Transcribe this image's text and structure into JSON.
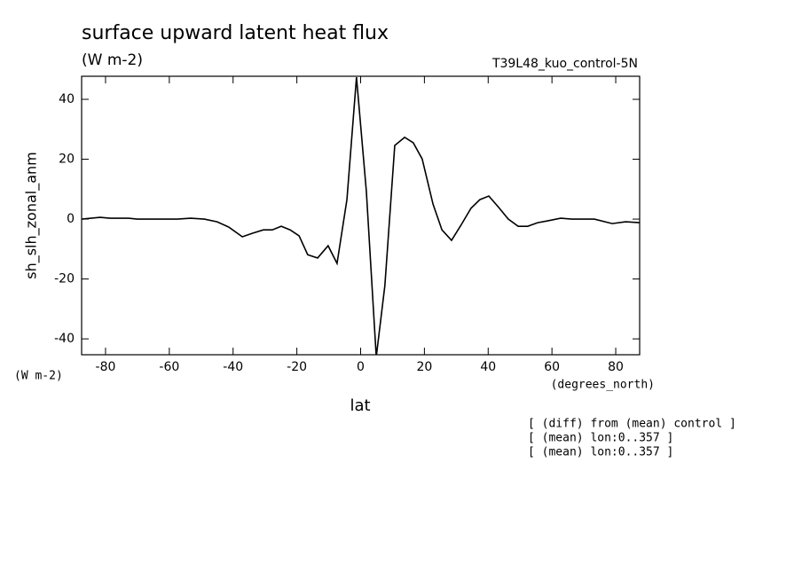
{
  "chart_data": {
    "type": "line",
    "title": "surface upward latent heat flux",
    "subtitle": "(W m-2)",
    "run_label": "T39L48_kuo_control-5N",
    "y_label": "sh_slh_zonal_anm",
    "y_units": "(W m-2)",
    "x_units": "(degrees_north)",
    "x_label": "lat",
    "notes": [
      "[ (diff) from (mean) control ]",
      "[ (mean) lon:0..357 ]",
      "[ (mean) lon:0..357 ]"
    ],
    "x": [
      -87.5,
      -81.7,
      -78.6,
      -72.8,
      -70.0,
      -57.5,
      -53.3,
      -49.0,
      -45.0,
      -41.3,
      -37.1,
      -33.8,
      -30.5,
      -27.7,
      -24.9,
      -22.1,
      -19.3,
      -16.6,
      -13.5,
      -10.2,
      -7.4,
      -4.3,
      -1.3,
      1.8,
      4.9,
      7.6,
      10.7,
      13.8,
      16.5,
      19.3,
      22.7,
      25.5,
      28.5,
      31.6,
      34.6,
      37.4,
      40.2,
      43.3,
      46.3,
      49.4,
      52.4,
      55.5,
      58.6,
      62.7,
      66.3,
      73.3,
      78.9,
      83.1,
      87.5
    ],
    "series": [
      {
        "name": "sh_slh_zonal_anm",
        "color": "#000000",
        "values": [
          0,
          0.6,
          0.3,
          0.3,
          0,
          0,
          0.3,
          0,
          -0.9,
          -2.7,
          -5.9,
          -4.7,
          -3.6,
          -3.6,
          -2.4,
          -3.6,
          -5.6,
          -11.9,
          -13,
          -8.9,
          -14.8,
          6.5,
          47.4,
          9.2,
          -46,
          -22.2,
          24.6,
          27.3,
          25.5,
          20.1,
          5,
          -3.6,
          -7.1,
          -1.8,
          3.6,
          6.5,
          7.7,
          3.9,
          0,
          -2.4,
          -2.4,
          -1.2,
          -0.6,
          0.3,
          0,
          0,
          -1.5,
          -0.9,
          -1.2
        ]
      }
    ],
    "xlim": [
      -87.5,
      87.5
    ],
    "xticks": [
      -80,
      -60,
      -40,
      -20,
      0,
      20,
      40,
      60,
      80
    ],
    "ylim": [
      -45.3,
      47.7
    ],
    "yticks": [
      -40,
      -20,
      0,
      20,
      40
    ]
  }
}
